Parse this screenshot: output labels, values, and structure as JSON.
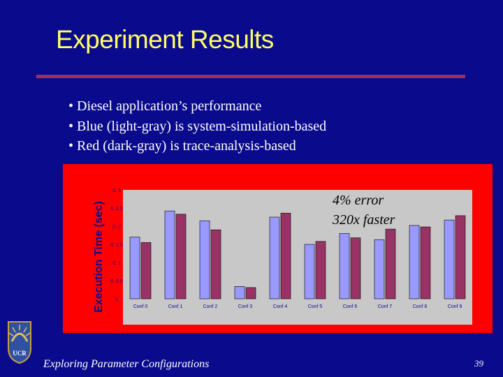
{
  "slide": {
    "title": "Experiment Results",
    "bullets": [
      "• Diesel application’s performance",
      "• Blue (light-gray) is system-simulation-based",
      "• Red (dark-gray) is trace-analysis-based"
    ],
    "footer": "Exploring Parameter Configurations",
    "page_number": "39",
    "logo_text": "UCR"
  },
  "colors": {
    "background": "#0a0a8c",
    "title": "#ffff66",
    "panel": "#ff0000",
    "plot_area": "#c8c8c8",
    "series_sim": "#9999ff",
    "series_trace": "#993366"
  },
  "chart_data": {
    "type": "bar",
    "title": "",
    "xlabel": "",
    "ylabel": "Execution Time (sec)",
    "ylim": [
      0,
      0.3
    ],
    "yticks": [
      "0",
      "0.05",
      "0.1",
      "0.15",
      "0.2",
      "0.25",
      "0.3"
    ],
    "grid": false,
    "legend": "none",
    "categories": [
      "Conf 0",
      "Conf 1",
      "Conf 2",
      "Conf 3",
      "Conf 4",
      "Conf 5",
      "Conf 6",
      "Conf 7",
      "Conf 8",
      "Conf 9"
    ],
    "series": [
      {
        "color": "#9999ff",
        "values": [
          0.17,
          0.242,
          0.215,
          0.034,
          0.225,
          0.15,
          0.18,
          0.163,
          0.202,
          0.217
        ]
      },
      {
        "color": "#993366",
        "values": [
          0.155,
          0.233,
          0.19,
          0.031,
          0.236,
          0.158,
          0.168,
          0.192,
          0.198,
          0.229
        ]
      }
    ],
    "annotations": [
      "4% error",
      "320x faster"
    ]
  }
}
